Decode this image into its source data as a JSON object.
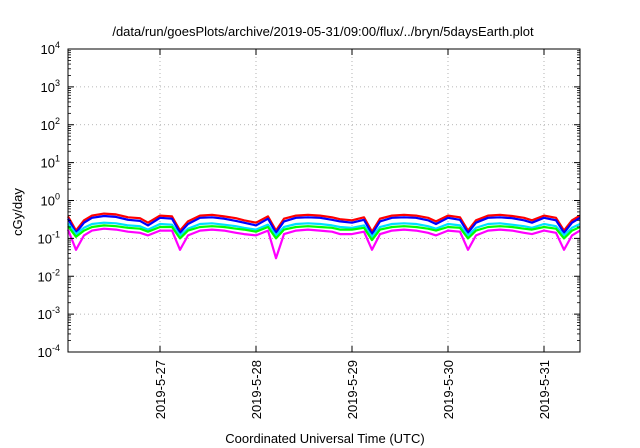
{
  "chart_data": {
    "type": "line",
    "title": "/data/run/goesPlots/archive/2019-05-31/09:00/flux/../bryn/5daysEarth.plot",
    "xlabel": "Coordinated Universal Time (UTC)",
    "ylabel": "cGy/day",
    "yscale": "log",
    "ylim": [
      0.0001,
      10000
    ],
    "xlim": [
      "2019-05-26T01:00",
      "2019-05-31T09:00"
    ],
    "grid": true,
    "legend": "none",
    "x_ticks": [
      {
        "date": "2019-05-27T00:00",
        "label": "2019-5-27"
      },
      {
        "date": "2019-05-28T00:00",
        "label": "2019-5-28"
      },
      {
        "date": "2019-05-29T00:00",
        "label": "2019-5-29"
      },
      {
        "date": "2019-05-30T00:00",
        "label": "2019-5-30"
      },
      {
        "date": "2019-05-31T00:00",
        "label": "2019-5-31"
      }
    ],
    "y_ticks": [
      {
        "value": 0.0001,
        "base": "10",
        "exp": "-4"
      },
      {
        "value": 0.001,
        "base": "10",
        "exp": "-3"
      },
      {
        "value": 0.01,
        "base": "10",
        "exp": "-2"
      },
      {
        "value": 0.1,
        "base": "10",
        "exp": "-1"
      },
      {
        "value": 1,
        "base": "10",
        "exp": "0"
      },
      {
        "value": 10,
        "base": "10",
        "exp": "1"
      },
      {
        "value": 100,
        "base": "10",
        "exp": "2"
      },
      {
        "value": 1000,
        "base": "10",
        "exp": "3"
      },
      {
        "value": 10000,
        "base": "10",
        "exp": "4"
      }
    ],
    "x": [
      "2019-05-26T01:00",
      "2019-05-26T03:00",
      "2019-05-26T05:00",
      "2019-05-26T07:00",
      "2019-05-26T10:00",
      "2019-05-26T13:00",
      "2019-05-26T16:00",
      "2019-05-26T19:00",
      "2019-05-26T21:00",
      "2019-05-27T00:00",
      "2019-05-27T03:00",
      "2019-05-27T05:00",
      "2019-05-27T07:00",
      "2019-05-27T10:00",
      "2019-05-27T13:00",
      "2019-05-27T16:00",
      "2019-05-27T19:00",
      "2019-05-27T21:00",
      "2019-05-28T00:00",
      "2019-05-28T03:00",
      "2019-05-28T05:00",
      "2019-05-28T07:00",
      "2019-05-28T10:00",
      "2019-05-28T13:00",
      "2019-05-28T16:00",
      "2019-05-28T19:00",
      "2019-05-28T21:00",
      "2019-05-29T00:00",
      "2019-05-29T03:00",
      "2019-05-29T05:00",
      "2019-05-29T07:00",
      "2019-05-29T10:00",
      "2019-05-29T13:00",
      "2019-05-29T16:00",
      "2019-05-29T19:00",
      "2019-05-29T21:00",
      "2019-05-30T00:00",
      "2019-05-30T03:00",
      "2019-05-30T05:00",
      "2019-05-30T07:00",
      "2019-05-30T10:00",
      "2019-05-30T13:00",
      "2019-05-30T16:00",
      "2019-05-30T19:00",
      "2019-05-30T21:00",
      "2019-05-31T00:00",
      "2019-05-31T03:00",
      "2019-05-31T05:00",
      "2019-05-31T07:00",
      "2019-05-31T09:00"
    ],
    "series": [
      {
        "color": "#ff0000",
        "values": [
          0.38,
          0.16,
          0.3,
          0.4,
          0.45,
          0.43,
          0.36,
          0.34,
          0.26,
          0.4,
          0.38,
          0.16,
          0.28,
          0.4,
          0.42,
          0.38,
          0.34,
          0.3,
          0.26,
          0.38,
          0.16,
          0.33,
          0.4,
          0.42,
          0.4,
          0.36,
          0.32,
          0.3,
          0.36,
          0.15,
          0.33,
          0.4,
          0.42,
          0.4,
          0.35,
          0.28,
          0.4,
          0.36,
          0.16,
          0.3,
          0.4,
          0.42,
          0.39,
          0.35,
          0.3,
          0.4,
          0.35,
          0.16,
          0.3,
          0.4
        ]
      },
      {
        "color": "#0000ff",
        "values": [
          0.33,
          0.14,
          0.26,
          0.35,
          0.39,
          0.37,
          0.31,
          0.29,
          0.22,
          0.35,
          0.33,
          0.14,
          0.24,
          0.35,
          0.36,
          0.33,
          0.29,
          0.26,
          0.22,
          0.33,
          0.14,
          0.28,
          0.35,
          0.36,
          0.35,
          0.31,
          0.28,
          0.26,
          0.31,
          0.13,
          0.28,
          0.35,
          0.36,
          0.35,
          0.3,
          0.24,
          0.35,
          0.31,
          0.14,
          0.26,
          0.35,
          0.36,
          0.34,
          0.3,
          0.26,
          0.35,
          0.3,
          0.14,
          0.26,
          0.35
        ]
      },
      {
        "color": "#00e0ff",
        "values": [
          0.25,
          0.13,
          0.19,
          0.24,
          0.26,
          0.25,
          0.22,
          0.21,
          0.17,
          0.24,
          0.23,
          0.12,
          0.18,
          0.24,
          0.25,
          0.23,
          0.21,
          0.19,
          0.17,
          0.23,
          0.12,
          0.2,
          0.24,
          0.25,
          0.24,
          0.22,
          0.2,
          0.19,
          0.22,
          0.11,
          0.2,
          0.24,
          0.25,
          0.24,
          0.21,
          0.18,
          0.24,
          0.22,
          0.12,
          0.19,
          0.24,
          0.25,
          0.23,
          0.21,
          0.19,
          0.24,
          0.21,
          0.12,
          0.19,
          0.24
        ]
      },
      {
        "color": "#00ff00",
        "values": [
          0.21,
          0.11,
          0.16,
          0.2,
          0.22,
          0.21,
          0.19,
          0.18,
          0.15,
          0.2,
          0.2,
          0.1,
          0.16,
          0.2,
          0.21,
          0.2,
          0.18,
          0.17,
          0.15,
          0.2,
          0.1,
          0.17,
          0.2,
          0.21,
          0.2,
          0.19,
          0.17,
          0.17,
          0.19,
          0.09,
          0.17,
          0.2,
          0.21,
          0.2,
          0.18,
          0.16,
          0.2,
          0.19,
          0.1,
          0.16,
          0.2,
          0.21,
          0.2,
          0.18,
          0.17,
          0.2,
          0.18,
          0.1,
          0.16,
          0.2
        ]
      },
      {
        "color": "#ff00ff",
        "values": [
          0.17,
          0.05,
          0.12,
          0.16,
          0.18,
          0.17,
          0.15,
          0.14,
          0.12,
          0.16,
          0.16,
          0.05,
          0.12,
          0.16,
          0.17,
          0.16,
          0.14,
          0.13,
          0.12,
          0.16,
          0.03,
          0.13,
          0.16,
          0.17,
          0.16,
          0.15,
          0.13,
          0.13,
          0.15,
          0.05,
          0.13,
          0.16,
          0.17,
          0.16,
          0.14,
          0.12,
          0.16,
          0.15,
          0.05,
          0.12,
          0.16,
          0.17,
          0.16,
          0.14,
          0.13,
          0.16,
          0.14,
          0.05,
          0.12,
          0.16
        ]
      }
    ]
  }
}
